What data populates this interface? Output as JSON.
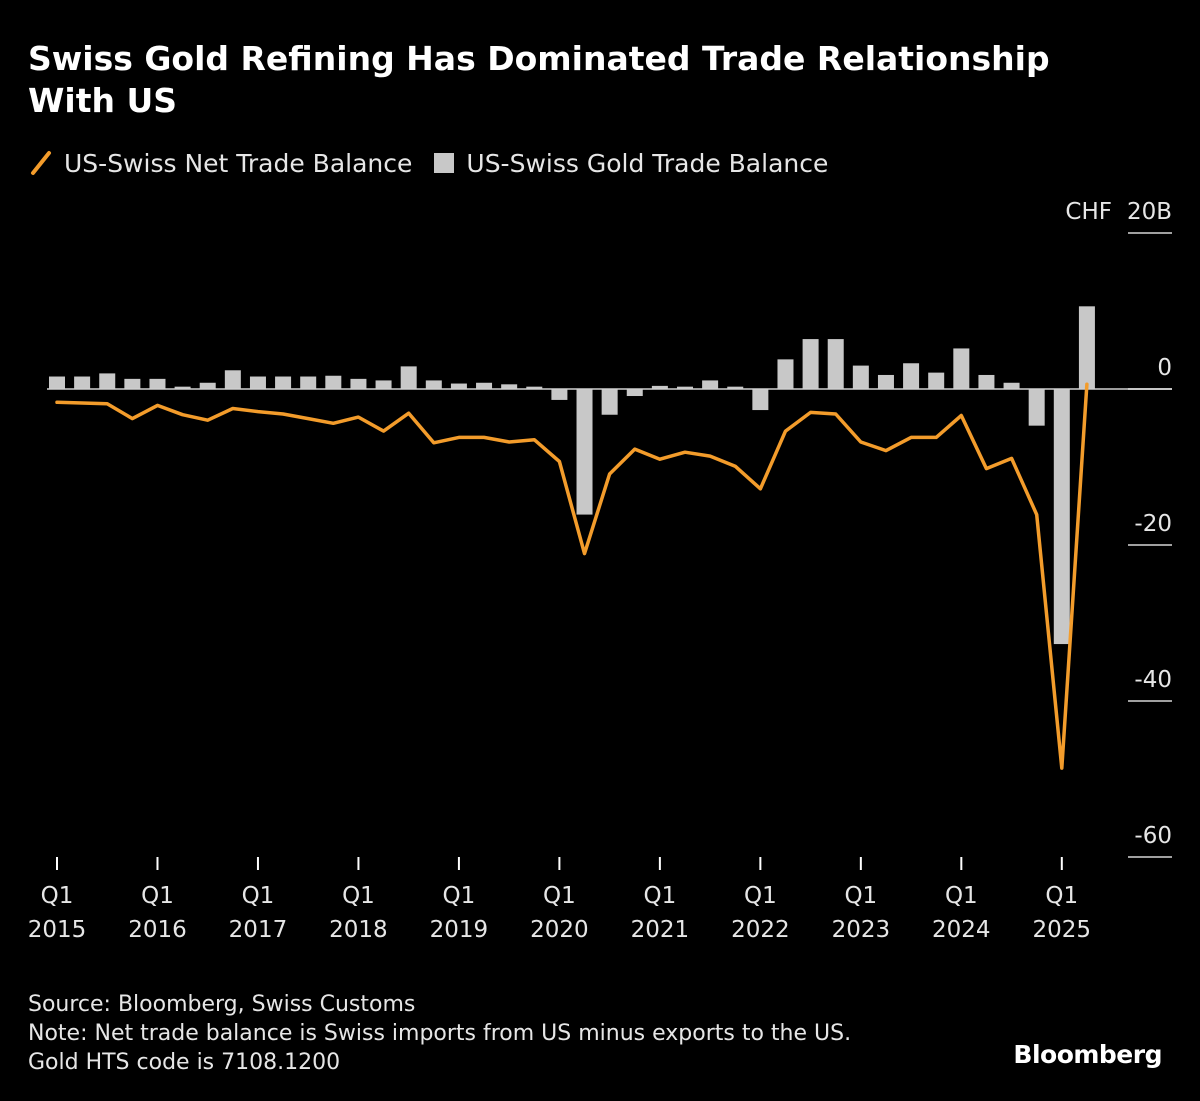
{
  "title": "Swiss Gold Refining Has Dominated Trade Relationship With US",
  "legend": {
    "line_label": "US-Swiss Net Trade Balance",
    "bar_label": "US-Swiss Gold Trade Balance"
  },
  "source": "Source: Bloomberg, Swiss Customs",
  "note_line1": "Note: Net trade balance is Swiss imports from US minus exports to the US.",
  "note_line2": "Gold HTS code is 7108.1200",
  "brand": "Bloomberg",
  "colors": {
    "line": "#f39c2b",
    "bar": "#c8c8c8",
    "background": "#000000",
    "text": "#e6e6e6"
  },
  "chart_data": {
    "type": "bar",
    "title": "Swiss Gold Refining Has Dominated Trade Relationship With US",
    "unit_label": "CHF",
    "ylim": [
      -60,
      20
    ],
    "yticks": [
      20,
      0,
      -20,
      -40,
      -60
    ],
    "ytick_labels": [
      "20B",
      "0",
      "-20",
      "-40",
      "-60"
    ],
    "categories": [
      "2015 Q1",
      "2015 Q2",
      "2015 Q3",
      "2015 Q4",
      "2016 Q1",
      "2016 Q2",
      "2016 Q3",
      "2016 Q4",
      "2017 Q1",
      "2017 Q2",
      "2017 Q3",
      "2017 Q4",
      "2018 Q1",
      "2018 Q2",
      "2018 Q3",
      "2018 Q4",
      "2019 Q1",
      "2019 Q2",
      "2019 Q3",
      "2019 Q4",
      "2020 Q1",
      "2020 Q2",
      "2020 Q3",
      "2020 Q4",
      "2021 Q1",
      "2021 Q2",
      "2021 Q3",
      "2021 Q4",
      "2022 Q1",
      "2022 Q2",
      "2022 Q3",
      "2022 Q4",
      "2023 Q1",
      "2023 Q2",
      "2023 Q3",
      "2023 Q4",
      "2024 Q1",
      "2024 Q2",
      "2024 Q3",
      "2024 Q4",
      "2025 Q1",
      "2025 Q2"
    ],
    "xtick_labels": [
      {
        "q": "Q1",
        "year": "2015",
        "index": 0
      },
      {
        "q": "Q1",
        "year": "2016",
        "index": 4
      },
      {
        "q": "Q1",
        "year": "2017",
        "index": 8
      },
      {
        "q": "Q1",
        "year": "2018",
        "index": 12
      },
      {
        "q": "Q1",
        "year": "2019",
        "index": 16
      },
      {
        "q": "Q1",
        "year": "2020",
        "index": 20
      },
      {
        "q": "Q1",
        "year": "2021",
        "index": 24
      },
      {
        "q": "Q1",
        "year": "2022",
        "index": 28
      },
      {
        "q": "Q1",
        "year": "2023",
        "index": 32
      },
      {
        "q": "Q1",
        "year": "2024",
        "index": 36
      },
      {
        "q": "Q1",
        "year": "2025",
        "index": 40
      }
    ],
    "series": [
      {
        "name": "US-Swiss Gold Trade Balance",
        "kind": "bar",
        "values": [
          1.6,
          1.6,
          2.0,
          1.3,
          1.3,
          0.3,
          0.8,
          2.4,
          1.6,
          1.6,
          1.6,
          1.7,
          1.3,
          1.1,
          2.9,
          1.1,
          0.7,
          0.8,
          0.6,
          0.3,
          -1.4,
          -16.1,
          -3.3,
          -0.9,
          0.4,
          0.3,
          1.1,
          0.3,
          -2.7,
          3.8,
          6.4,
          6.4,
          3.0,
          1.8,
          3.3,
          2.1,
          5.2,
          1.8,
          0.8,
          -4.7,
          -32.7,
          10.6
        ]
      },
      {
        "name": "US-Swiss Net Trade Balance",
        "kind": "line",
        "values": [
          -1.7,
          -1.8,
          -1.9,
          -3.8,
          -2.1,
          -3.3,
          -4.0,
          -2.5,
          -2.9,
          -3.2,
          -3.8,
          -4.4,
          -3.6,
          -5.4,
          -3.1,
          -6.9,
          -6.2,
          -6.2,
          -6.8,
          -6.5,
          -9.3,
          -21.1,
          -10.9,
          -7.7,
          -9.0,
          -8.1,
          -8.6,
          -9.9,
          -12.8,
          -5.4,
          -3.0,
          -3.2,
          -6.8,
          -7.9,
          -6.2,
          -6.2,
          -3.4,
          -10.2,
          -8.9,
          -16.1,
          -48.6,
          0.6
        ]
      }
    ]
  }
}
